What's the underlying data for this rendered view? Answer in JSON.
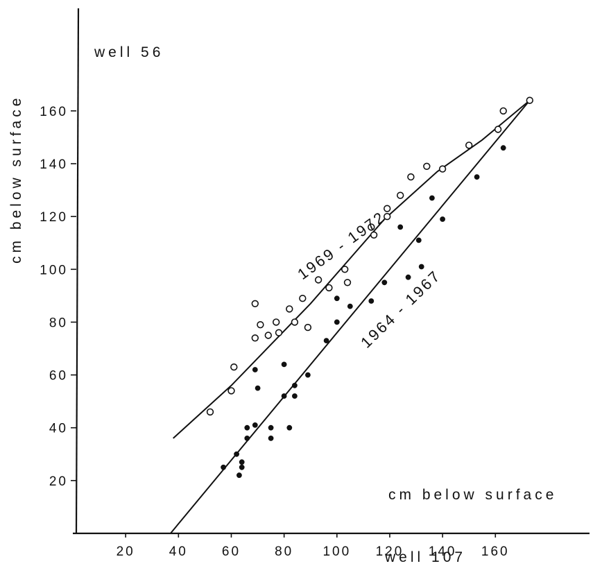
{
  "chart_data": {
    "type": "scatter",
    "title_top_left": "well 56",
    "ylabel": "cm below surface",
    "xlabel": "cm below surface",
    "xlabel2": "well 107",
    "xlim": [
      0,
      180
    ],
    "ylim": [
      0,
      180
    ],
    "x_ticks": [
      20,
      40,
      60,
      80,
      100,
      120,
      140,
      160
    ],
    "y_ticks": [
      20,
      40,
      60,
      80,
      100,
      120,
      140,
      160
    ],
    "grid": false,
    "series": [
      {
        "name": "1969 - 1972",
        "marker": "open-circle",
        "points": [
          [
            52,
            46
          ],
          [
            60,
            54
          ],
          [
            61,
            63
          ],
          [
            69,
            87
          ],
          [
            69,
            74
          ],
          [
            71,
            79
          ],
          [
            74,
            75
          ],
          [
            77,
            80
          ],
          [
            78,
            76
          ],
          [
            82,
            85
          ],
          [
            84,
            80
          ],
          [
            87,
            89
          ],
          [
            89,
            78
          ],
          [
            93,
            96
          ],
          [
            97,
            93
          ],
          [
            103,
            100
          ],
          [
            104,
            95
          ],
          [
            113,
            116
          ],
          [
            114,
            113
          ],
          [
            119,
            123
          ],
          [
            119,
            120
          ],
          [
            124,
            128
          ],
          [
            128,
            135
          ],
          [
            134,
            139
          ],
          [
            140,
            138
          ],
          [
            150,
            147
          ],
          [
            161,
            153
          ],
          [
            163,
            160
          ],
          [
            173,
            164
          ]
        ],
        "fit_line": [
          [
            38,
            36
          ],
          [
            60,
            56
          ],
          [
            90,
            87
          ],
          [
            118,
            119
          ],
          [
            138,
            137
          ],
          [
            155,
            149
          ],
          [
            173,
            164
          ]
        ]
      },
      {
        "name": "1964 - 1967",
        "marker": "filled-circle",
        "points": [
          [
            57,
            25
          ],
          [
            62,
            30
          ],
          [
            63,
            22
          ],
          [
            64,
            25
          ],
          [
            64,
            27
          ],
          [
            66,
            36
          ],
          [
            66,
            40
          ],
          [
            69,
            62
          ],
          [
            69,
            41
          ],
          [
            70,
            55
          ],
          [
            75,
            36
          ],
          [
            75,
            40
          ],
          [
            80,
            52
          ],
          [
            80,
            64
          ],
          [
            82,
            40
          ],
          [
            84,
            52
          ],
          [
            84,
            56
          ],
          [
            89,
            60
          ],
          [
            96,
            73
          ],
          [
            100,
            89
          ],
          [
            100,
            80
          ],
          [
            105,
            86
          ],
          [
            113,
            88
          ],
          [
            118,
            95
          ],
          [
            124,
            116
          ],
          [
            127,
            97
          ],
          [
            131,
            111
          ],
          [
            132,
            101
          ],
          [
            136,
            127
          ],
          [
            140,
            119
          ],
          [
            153,
            135
          ],
          [
            163,
            146
          ]
        ],
        "fit_line": [
          [
            37,
            0
          ],
          [
            173,
            164
          ]
        ]
      }
    ]
  }
}
